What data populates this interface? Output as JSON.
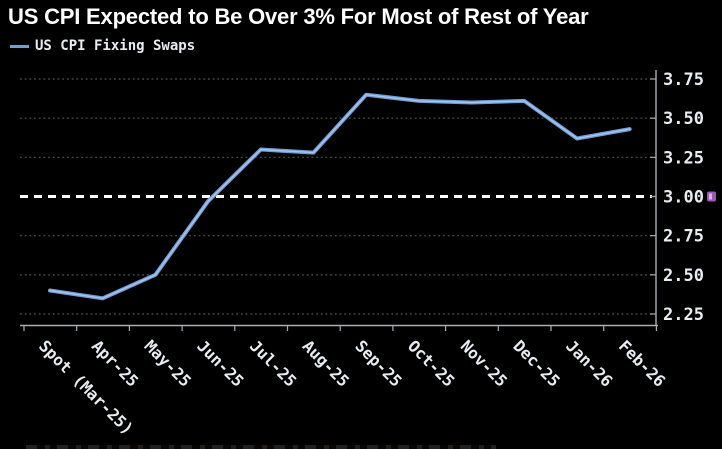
{
  "title": "US CPI Expected to Be Over 3% For Most of Rest of Year",
  "legend": {
    "label": "US CPI Fixing Swaps"
  },
  "colors": {
    "background": "#000000",
    "title_text": "#ffffff",
    "axis_text": "#e8ebf0",
    "line": "#6f9ed8",
    "line_core": "#a9c6ea",
    "grid": "#56564a",
    "reference_line": "#ffffff",
    "axis": "#a8adb3",
    "annotation_marker": "#9b59b6"
  },
  "chart_data": {
    "type": "line",
    "title": "US CPI Expected to Be Over 3% For Most of Rest of Year",
    "categories": [
      "Spot (Mar-25)",
      "Apr-25",
      "May-25",
      "Jun-25",
      "Jul-25",
      "Aug-25",
      "Sep-25",
      "Oct-25",
      "Nov-25",
      "Dec-25",
      "Jan-26",
      "Feb-26"
    ],
    "series": [
      {
        "name": "US CPI Fixing Swaps",
        "values": [
          2.4,
          2.35,
          2.5,
          2.97,
          3.3,
          3.28,
          3.65,
          3.61,
          3.6,
          3.61,
          3.37,
          3.43
        ]
      }
    ],
    "xlabel": "",
    "ylabel": "",
    "ylim": [
      2.2,
      3.82
    ],
    "yticks": [
      2.25,
      2.5,
      2.75,
      3.0,
      3.25,
      3.5,
      3.75
    ],
    "ytick_labels": [
      "2.25",
      "2.50",
      "2.75",
      "3.00",
      "3.25",
      "3.50",
      "3.75"
    ],
    "reference_line": 3.0,
    "grid": "horizontal-dotted",
    "legend_position": "top-left",
    "y_axis_side": "right"
  }
}
